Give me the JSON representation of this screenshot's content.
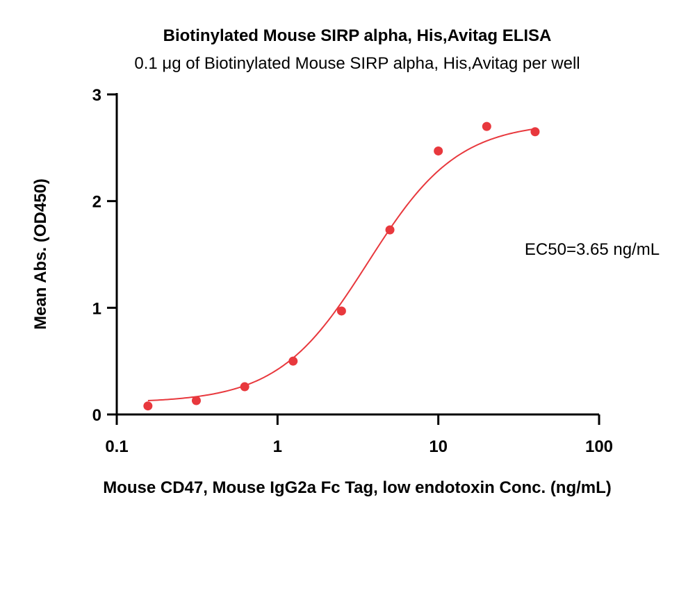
{
  "chart_data": {
    "type": "scatter",
    "title": "Biotinylated Mouse SIRP alpha, His,Avitag ELISA",
    "subtitle": "0.1 μg of Biotinylated Mouse SIRP alpha, His,Avitag per well",
    "xlabel": "Mouse CD47, Mouse IgG2a Fc Tag, low endotoxin Conc. (ng/mL)",
    "ylabel": "Mean Abs. (OD450)",
    "x_scale": "log",
    "xlim": [
      0.1,
      100
    ],
    "ylim": [
      0,
      3
    ],
    "x_ticks": [
      "0.1",
      "1",
      "10",
      "100"
    ],
    "y_ticks": [
      "0",
      "1",
      "2",
      "3"
    ],
    "grid": false,
    "series": [
      {
        "color": "#e8383d",
        "x": [
          0.15625,
          0.3125,
          0.625,
          1.25,
          2.5,
          5,
          10,
          20,
          40
        ],
        "y": [
          0.08,
          0.13,
          0.26,
          0.5,
          0.97,
          1.73,
          2.47,
          2.7,
          2.65
        ]
      }
    ],
    "fit_curve": {
      "color": "#e8383d",
      "bottom": 0.11,
      "top": 2.74,
      "ec50": 3.65,
      "hill_slope": 1.55
    },
    "annotation": "EC50=3.65 ng/mL"
  }
}
